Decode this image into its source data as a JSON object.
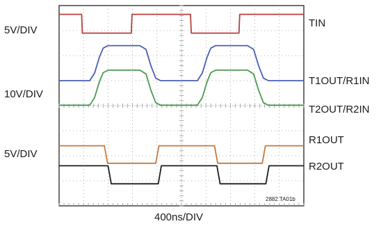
{
  "chart_data": {
    "type": "line",
    "grid": true,
    "legend": "right",
    "x_scale_label": "400ns/DIV",
    "x_divisions": 10,
    "y_divisions": 8,
    "figure_id": "2882 TA01b",
    "scale_labels": [
      "5V/DIV",
      "10V/DIV",
      "5V/DIV"
    ],
    "series": [
      {
        "name": "TIN",
        "color": "#b5413a",
        "points": [
          [
            0,
            7.65
          ],
          [
            0.92,
            7.65
          ],
          [
            0.95,
            6.9
          ],
          [
            2.95,
            6.9
          ],
          [
            2.98,
            7.65
          ],
          [
            5.37,
            7.65
          ],
          [
            5.4,
            6.9
          ],
          [
            7.35,
            6.9
          ],
          [
            7.38,
            7.65
          ],
          [
            10,
            7.65
          ]
        ]
      },
      {
        "name": "T1OUT/R1IN",
        "color": "#4a5cb4",
        "points": [
          [
            0,
            5.0
          ],
          [
            1.25,
            5.0
          ],
          [
            1.45,
            5.3
          ],
          [
            1.65,
            5.95
          ],
          [
            1.8,
            6.3
          ],
          [
            2.0,
            6.4
          ],
          [
            3.3,
            6.4
          ],
          [
            3.55,
            6.25
          ],
          [
            3.75,
            5.6
          ],
          [
            3.95,
            5.1
          ],
          [
            4.15,
            5.0
          ],
          [
            5.65,
            5.0
          ],
          [
            5.85,
            5.3
          ],
          [
            6.05,
            5.95
          ],
          [
            6.2,
            6.3
          ],
          [
            6.4,
            6.4
          ],
          [
            7.7,
            6.4
          ],
          [
            7.95,
            6.25
          ],
          [
            8.15,
            5.6
          ],
          [
            8.35,
            5.1
          ],
          [
            8.55,
            5.0
          ],
          [
            10,
            5.0
          ]
        ]
      },
      {
        "name": "T2OUT/R2IN",
        "color": "#4a9a50",
        "points": [
          [
            0,
            4.02
          ],
          [
            1.25,
            4.02
          ],
          [
            1.45,
            4.32
          ],
          [
            1.65,
            4.97
          ],
          [
            1.8,
            5.32
          ],
          [
            2.0,
            5.42
          ],
          [
            3.3,
            5.42
          ],
          [
            3.55,
            5.27
          ],
          [
            3.75,
            4.62
          ],
          [
            3.95,
            4.12
          ],
          [
            4.15,
            4.02
          ],
          [
            5.65,
            4.02
          ],
          [
            5.85,
            4.32
          ],
          [
            6.05,
            4.97
          ],
          [
            6.2,
            5.32
          ],
          [
            6.4,
            5.42
          ],
          [
            7.7,
            5.42
          ],
          [
            7.95,
            5.27
          ],
          [
            8.15,
            4.62
          ],
          [
            8.35,
            4.12
          ],
          [
            8.55,
            4.02
          ],
          [
            10,
            4.02
          ]
        ]
      },
      {
        "name": "R1OUT",
        "color": "#c8783a",
        "points": [
          [
            0,
            2.4
          ],
          [
            1.85,
            2.4
          ],
          [
            1.98,
            1.7
          ],
          [
            3.95,
            1.7
          ],
          [
            4.08,
            2.4
          ],
          [
            6.35,
            2.4
          ],
          [
            6.48,
            1.7
          ],
          [
            8.3,
            1.7
          ],
          [
            8.43,
            2.4
          ],
          [
            10,
            2.4
          ]
        ]
      },
      {
        "name": "R2OUT",
        "color": "#1e1e1e",
        "points": [
          [
            0,
            1.6
          ],
          [
            2.0,
            1.6
          ],
          [
            2.13,
            0.88
          ],
          [
            4.05,
            0.88
          ],
          [
            4.18,
            1.6
          ],
          [
            6.45,
            1.6
          ],
          [
            6.58,
            0.88
          ],
          [
            8.45,
            0.88
          ],
          [
            8.58,
            1.6
          ],
          [
            10,
            1.6
          ]
        ]
      }
    ]
  }
}
